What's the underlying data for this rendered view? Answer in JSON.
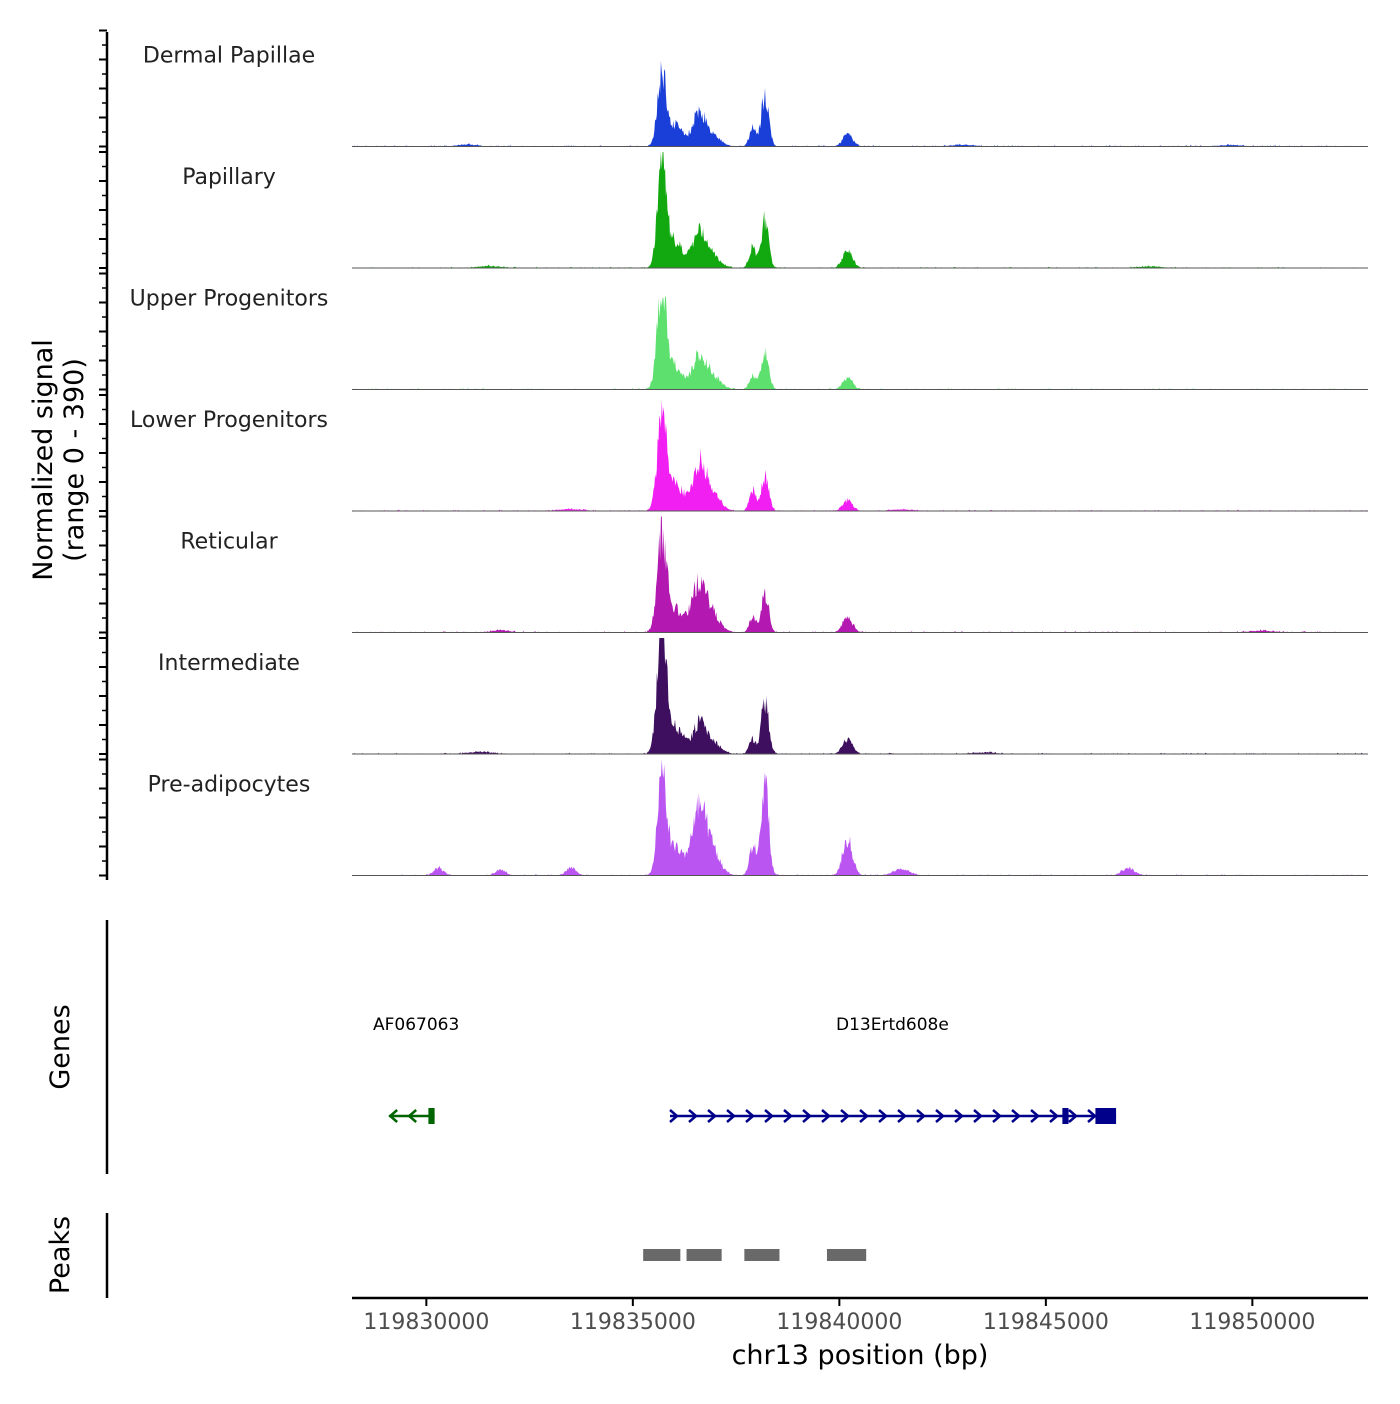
{
  "chart_data": {
    "type": "area",
    "chromosome": "chr13",
    "xlabel": "chr13 position (bp)",
    "ylabel": "Normalized signal",
    "ylabel_range": "(range 0 - 390)",
    "ylim": [
      0,
      390
    ],
    "xlim": [
      119828200,
      119852800
    ],
    "x_ticks": [
      {
        "value": 119830000,
        "label": "119830000"
      },
      {
        "value": 119835000,
        "label": "119835000"
      },
      {
        "value": 119840000,
        "label": "119840000"
      },
      {
        "value": 119845000,
        "label": "119845000"
      },
      {
        "value": 119850000,
        "label": "119850000"
      }
    ],
    "peak_positions": [
      119835700,
      119836600,
      119837900,
      119838200,
      119840200
    ],
    "tracks": [
      {
        "name": "Dermal Papillae",
        "color": "#1a3fd9",
        "peaks": [
          {
            "pos": 119835700,
            "value": 230,
            "width": 100
          },
          {
            "pos": 119836000,
            "value": 70,
            "width": 220
          },
          {
            "pos": 119836600,
            "value": 110,
            "width": 140
          },
          {
            "pos": 119836900,
            "value": 40,
            "width": 200
          },
          {
            "pos": 119837900,
            "value": 60,
            "width": 80
          },
          {
            "pos": 119838200,
            "value": 175,
            "width": 90
          },
          {
            "pos": 119840200,
            "value": 40,
            "width": 120
          },
          {
            "pos": 119831000,
            "value": 6,
            "width": 250
          },
          {
            "pos": 119843000,
            "value": 5,
            "width": 300
          },
          {
            "pos": 119849500,
            "value": 4,
            "width": 300
          }
        ]
      },
      {
        "name": "Papillary",
        "color": "#12a810",
        "peaks": [
          {
            "pos": 119835700,
            "value": 360,
            "width": 100
          },
          {
            "pos": 119836000,
            "value": 90,
            "width": 220
          },
          {
            "pos": 119836600,
            "value": 110,
            "width": 150
          },
          {
            "pos": 119836900,
            "value": 45,
            "width": 200
          },
          {
            "pos": 119837900,
            "value": 70,
            "width": 80
          },
          {
            "pos": 119838200,
            "value": 160,
            "width": 90
          },
          {
            "pos": 119840200,
            "value": 55,
            "width": 120
          },
          {
            "pos": 119831500,
            "value": 6,
            "width": 300
          },
          {
            "pos": 119847500,
            "value": 5,
            "width": 300
          }
        ]
      },
      {
        "name": "Upper Progenitors",
        "color": "#5ee06e",
        "peaks": [
          {
            "pos": 119835700,
            "value": 310,
            "width": 110
          },
          {
            "pos": 119836000,
            "value": 80,
            "width": 220
          },
          {
            "pos": 119836600,
            "value": 100,
            "width": 150
          },
          {
            "pos": 119836900,
            "value": 50,
            "width": 200
          },
          {
            "pos": 119837900,
            "value": 50,
            "width": 80
          },
          {
            "pos": 119838200,
            "value": 130,
            "width": 90
          },
          {
            "pos": 119840200,
            "value": 40,
            "width": 120
          }
        ]
      },
      {
        "name": "Lower Progenitors",
        "color": "#f21ff2",
        "peaks": [
          {
            "pos": 119835700,
            "value": 280,
            "width": 110
          },
          {
            "pos": 119836000,
            "value": 90,
            "width": 220
          },
          {
            "pos": 119836600,
            "value": 145,
            "width": 160
          },
          {
            "pos": 119836900,
            "value": 60,
            "width": 200
          },
          {
            "pos": 119837900,
            "value": 70,
            "width": 80
          },
          {
            "pos": 119838200,
            "value": 120,
            "width": 90
          },
          {
            "pos": 119840200,
            "value": 35,
            "width": 120
          },
          {
            "pos": 119833500,
            "value": 6,
            "width": 300
          },
          {
            "pos": 119841500,
            "value": 5,
            "width": 300
          }
        ]
      },
      {
        "name": "Reticular",
        "color": "#b318b0",
        "peaks": [
          {
            "pos": 119835700,
            "value": 300,
            "width": 110
          },
          {
            "pos": 119836000,
            "value": 80,
            "width": 220
          },
          {
            "pos": 119836600,
            "value": 150,
            "width": 170
          },
          {
            "pos": 119836900,
            "value": 60,
            "width": 200
          },
          {
            "pos": 119837900,
            "value": 50,
            "width": 80
          },
          {
            "pos": 119838200,
            "value": 130,
            "width": 90
          },
          {
            "pos": 119840200,
            "value": 50,
            "width": 120
          },
          {
            "pos": 119831800,
            "value": 8,
            "width": 200
          },
          {
            "pos": 119850200,
            "value": 6,
            "width": 300
          }
        ]
      },
      {
        "name": "Intermediate",
        "color": "#3f0f5f",
        "peaks": [
          {
            "pos": 119835700,
            "value": 390,
            "width": 110
          },
          {
            "pos": 119836000,
            "value": 90,
            "width": 220
          },
          {
            "pos": 119836600,
            "value": 90,
            "width": 150
          },
          {
            "pos": 119836900,
            "value": 45,
            "width": 200
          },
          {
            "pos": 119837900,
            "value": 50,
            "width": 80
          },
          {
            "pos": 119838200,
            "value": 180,
            "width": 90
          },
          {
            "pos": 119840200,
            "value": 50,
            "width": 120
          },
          {
            "pos": 119831300,
            "value": 7,
            "width": 300
          },
          {
            "pos": 119843500,
            "value": 5,
            "width": 300
          }
        ]
      },
      {
        "name": "Pre-adipocytes",
        "color": "#bb55f2",
        "peaks": [
          {
            "pos": 119835700,
            "value": 330,
            "width": 100
          },
          {
            "pos": 119836000,
            "value": 100,
            "width": 220
          },
          {
            "pos": 119836600,
            "value": 200,
            "width": 170
          },
          {
            "pos": 119836900,
            "value": 80,
            "width": 200
          },
          {
            "pos": 119837900,
            "value": 100,
            "width": 80
          },
          {
            "pos": 119838200,
            "value": 310,
            "width": 90
          },
          {
            "pos": 119840200,
            "value": 120,
            "width": 120
          },
          {
            "pos": 119830300,
            "value": 25,
            "width": 120
          },
          {
            "pos": 119831800,
            "value": 20,
            "width": 120
          },
          {
            "pos": 119833500,
            "value": 25,
            "width": 120
          },
          {
            "pos": 119841500,
            "value": 20,
            "width": 200
          },
          {
            "pos": 119847000,
            "value": 25,
            "width": 150
          }
        ]
      }
    ],
    "genes_label": "Genes",
    "genes": [
      {
        "name": "AF067063",
        "color": "#006400",
        "start": 119829100,
        "end": 119830200,
        "strand": "-",
        "exons": [
          [
            119830050,
            119830200
          ]
        ]
      },
      {
        "name": "D13Ertd608e",
        "color": "#00008b",
        "start": 119835900,
        "end": 119846700,
        "strand": "+",
        "exons": [
          [
            119845400,
            119845550
          ],
          [
            119846200,
            119846700
          ]
        ]
      }
    ],
    "peaks_label": "Peaks",
    "peak_regions": [
      [
        119835250,
        119836150
      ],
      [
        119836300,
        119837150
      ],
      [
        119837700,
        119838550
      ],
      [
        119839700,
        119840650
      ]
    ]
  }
}
